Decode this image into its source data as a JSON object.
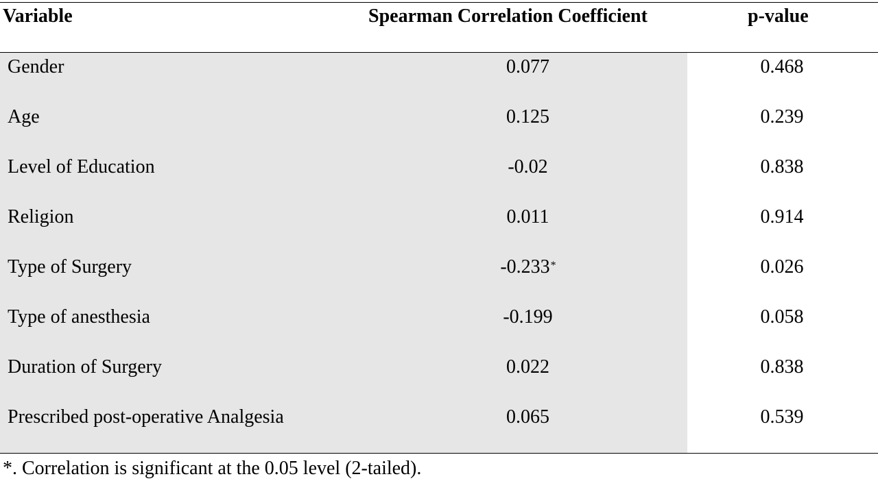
{
  "table": {
    "headers": {
      "variable": "Variable",
      "coefficient": "Spearman Correlation Coefficient",
      "p_value": "p-value"
    },
    "rows": [
      {
        "variable": "Gender",
        "coefficient": "0.077",
        "marker": "",
        "p_value": "0.468"
      },
      {
        "variable": "Age",
        "coefficient": "0.125",
        "marker": "",
        "p_value": "0.239"
      },
      {
        "variable": "Level of Education",
        "coefficient": "-0.02",
        "marker": "",
        "p_value": "0.838"
      },
      {
        "variable": "Religion",
        "coefficient": "0.011",
        "marker": "",
        "p_value": "0.914"
      },
      {
        "variable": "Type of Surgery",
        "coefficient": "-0.233",
        "marker": "*",
        "p_value": "0.026"
      },
      {
        "variable": "Type of anesthesia",
        "coefficient": "-0.199",
        "marker": "",
        "p_value": "0.058"
      },
      {
        "variable": "Duration of Surgery",
        "coefficient": "0.022",
        "marker": "",
        "p_value": "0.838"
      },
      {
        "variable": "Prescribed post-operative Analgesia",
        "coefficient": "0.065",
        "marker": "",
        "p_value": "0.539"
      }
    ],
    "footnote": "*. Correlation is significant at the 0.05 level (2-tailed).",
    "shade_color": "#e6e6e6"
  }
}
